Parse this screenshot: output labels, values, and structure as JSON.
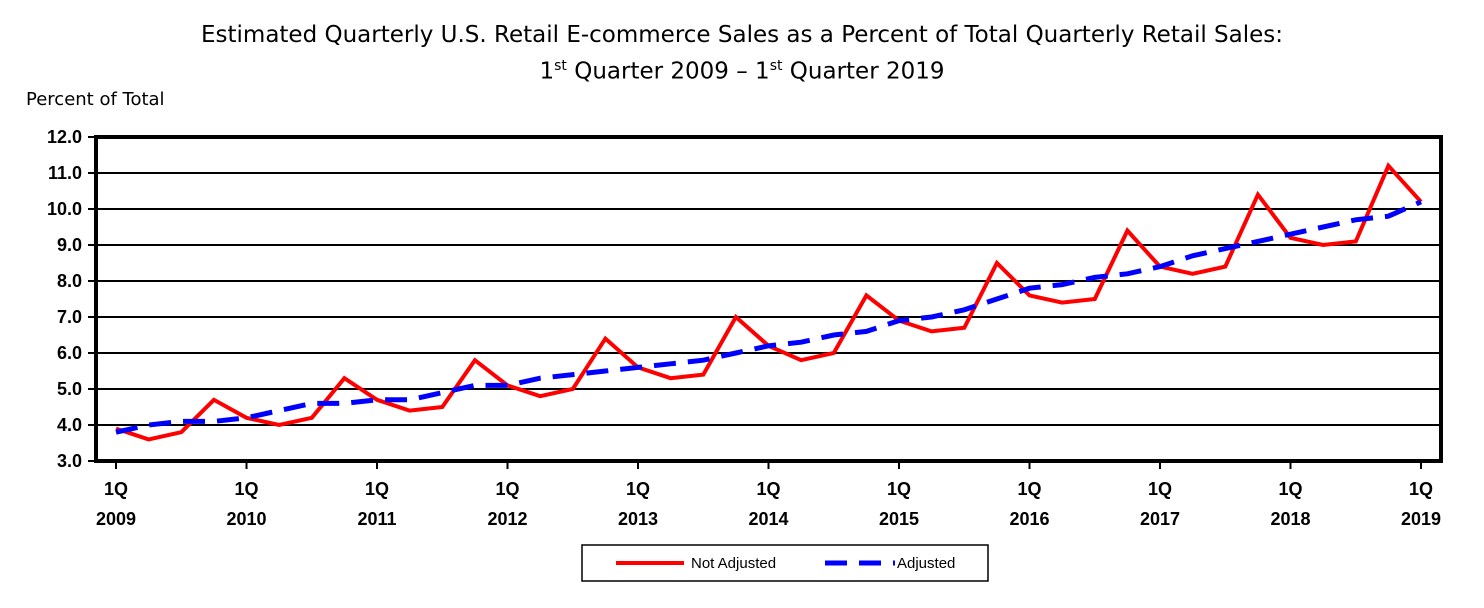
{
  "chart_data": {
    "type": "line",
    "title_line1": "Estimated Quarterly U.S. Retail E-commerce Sales as a Percent of Total Quarterly Retail Sales:",
    "title_line2": {
      "p1": "1",
      "sup1": "st",
      "p2": " Quarter 2009 – 1",
      "sup2": "st",
      "p3": " Quarter 2019"
    },
    "ylabel": "Percent of Total",
    "xlabel": "",
    "ylim": [
      3.0,
      12.0
    ],
    "yticks": [
      "3.0",
      "4.0",
      "5.0",
      "6.0",
      "7.0",
      "8.0",
      "9.0",
      "10.0",
      "11.0",
      "12.0"
    ],
    "xticks": [
      {
        "q": "1Q",
        "year": "2009"
      },
      {
        "q": "1Q",
        "year": "2010"
      },
      {
        "q": "1Q",
        "year": "2011"
      },
      {
        "q": "1Q",
        "year": "2012"
      },
      {
        "q": "1Q",
        "year": "2013"
      },
      {
        "q": "1Q",
        "year": "2014"
      },
      {
        "q": "1Q",
        "year": "2015"
      },
      {
        "q": "1Q",
        "year": "2016"
      },
      {
        "q": "1Q",
        "year": "2017"
      },
      {
        "q": "1Q",
        "year": "2018"
      },
      {
        "q": "1Q",
        "year": "2019"
      }
    ],
    "x_range": [
      "2009 Q1",
      "2019 Q1"
    ],
    "grid": true,
    "legend_position": "bottom-center",
    "series": [
      {
        "name": "Not Adjusted",
        "color": "#ff0000",
        "style": "solid",
        "values": [
          3.9,
          3.6,
          3.8,
          4.7,
          4.2,
          4.0,
          4.2,
          5.3,
          4.7,
          4.4,
          4.5,
          5.8,
          5.1,
          4.8,
          5.0,
          6.4,
          5.6,
          5.3,
          5.4,
          7.0,
          6.2,
          5.8,
          6.0,
          7.6,
          6.9,
          6.6,
          6.7,
          8.5,
          7.6,
          7.4,
          7.5,
          9.4,
          8.4,
          8.2,
          8.4,
          10.4,
          9.2,
          9.0,
          9.1,
          11.2,
          10.2
        ]
      },
      {
        "name": "Adjusted",
        "color": "#0000ff",
        "style": "dashed",
        "values": [
          3.8,
          4.0,
          4.1,
          4.1,
          4.2,
          4.4,
          4.6,
          4.6,
          4.7,
          4.7,
          4.9,
          5.1,
          5.1,
          5.3,
          5.4,
          5.5,
          5.6,
          5.7,
          5.8,
          6.0,
          6.2,
          6.3,
          6.5,
          6.6,
          6.9,
          7.0,
          7.2,
          7.5,
          7.8,
          7.9,
          8.1,
          8.2,
          8.4,
          8.7,
          8.9,
          9.1,
          9.3,
          9.5,
          9.7,
          9.8,
          10.2
        ]
      }
    ]
  }
}
